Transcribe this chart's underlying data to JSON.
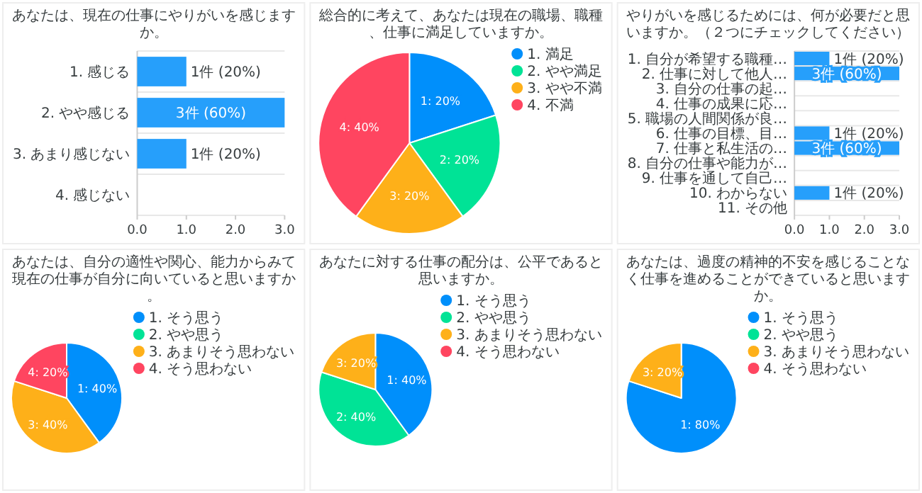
{
  "chart_data": [
    {
      "type": "bar",
      "orientation": "horizontal",
      "title": "あなたは、現在の仕事にやりがいを感じますか。",
      "categories": [
        "1. 感じる",
        "2. やや感じる",
        "3. あまり感じない",
        "4. 感じない"
      ],
      "values": [
        1,
        3,
        1,
        0
      ],
      "color": "#269ffb",
      "value_labels": [
        "1件 (20%)",
        "3件 (60%)",
        "1件 (20%)",
        null
      ],
      "xlim": [
        0,
        3
      ],
      "xticks": [
        {
          "value": 0,
          "label": "0.0"
        },
        {
          "value": 1,
          "label": "1.0"
        },
        {
          "value": 2,
          "label": "2.0"
        },
        {
          "value": 3,
          "label": "3.0"
        }
      ],
      "grid": true
    },
    {
      "type": "pie",
      "title": "総合的に考えて、あなたは現在の職場、職種、仕事に満足していますか。",
      "categories": [
        "1. 満足",
        "2. やや満足",
        "3. やや不満",
        "4. 不満"
      ],
      "values": [
        20,
        20,
        20,
        40
      ],
      "colors": [
        "#008ffb",
        "#00e396",
        "#feb019",
        "#ff4560"
      ],
      "value_labels": [
        "1: 20%",
        "2: 20%",
        "3: 20%",
        "4: 40%"
      ],
      "legend": "top right"
    },
    {
      "type": "bar",
      "orientation": "horizontal",
      "title": "やりがいを感じるためには、何が必要だと思いますか。（２つにチェックしてください）",
      "categories": [
        "1. 自分が希望する職種…",
        "2. 仕事に対して他人…",
        "3. 自分の仕事の起…",
        "4. 仕事の成果に応…",
        "5. 職場の人間関係が良…",
        "6. 仕事の目標、目…",
        "7. 仕事と私生活の…",
        "8. 自分の仕事や能力が…",
        "9. 仕事を通して自己…",
        "10. わからない",
        "11. その他"
      ],
      "values": [
        1,
        3,
        0,
        0,
        0,
        1,
        3,
        0,
        0,
        1,
        0
      ],
      "color": "#269ffb",
      "value_labels": [
        "1件 (20%)",
        "3件 (60%)",
        null,
        null,
        null,
        "1件 (20%)",
        "3件 (60%)",
        null,
        null,
        "1件 (20%)",
        null
      ],
      "xlim": [
        0,
        3
      ],
      "xticks": [
        {
          "value": 0,
          "label": "0.0"
        },
        {
          "value": 1,
          "label": "1.0"
        },
        {
          "value": 2,
          "label": "2.0"
        },
        {
          "value": 3,
          "label": "3.0"
        }
      ],
      "grid": true
    },
    {
      "type": "pie",
      "title": "あなたは、自分の適性や関心、能力からみて現在の仕事が自分に向いていると思いますか。",
      "categories": [
        "1. そう思う",
        "2. やや思う",
        "3. あまりそう思わない",
        "4. そう思わない"
      ],
      "values": [
        40,
        0,
        40,
        20
      ],
      "colors": [
        "#008ffb",
        "#00e396",
        "#feb019",
        "#ff4560"
      ],
      "value_labels": [
        "1: 40%",
        null,
        "3: 40%",
        "4: 20%"
      ],
      "legend": "top right"
    },
    {
      "type": "pie",
      "title": "あなたに対する仕事の配分は、公平であると思いますか。",
      "categories": [
        "1. そう思う",
        "2. やや思う",
        "3. あまりそう思わない",
        "4. そう思わない"
      ],
      "values": [
        40,
        40,
        20,
        0
      ],
      "colors": [
        "#008ffb",
        "#00e396",
        "#feb019",
        "#ff4560"
      ],
      "value_labels": [
        "1: 40%",
        "2: 40%",
        "3: 20%",
        null
      ],
      "legend": "top right"
    },
    {
      "type": "pie",
      "title": "あなたは、過度の精神的不安を感じることなく仕事を進めることができていると思いますか。",
      "categories": [
        "1. そう思う",
        "2. やや思う",
        "3. あまりそう思わない",
        "4. そう思わない"
      ],
      "values": [
        80,
        0,
        20,
        0
      ],
      "colors": [
        "#008ffb",
        "#00e396",
        "#feb019",
        "#ff4560"
      ],
      "value_labels": [
        "1: 80%",
        null,
        "3: 20%",
        null
      ],
      "legend": "top right"
    }
  ]
}
